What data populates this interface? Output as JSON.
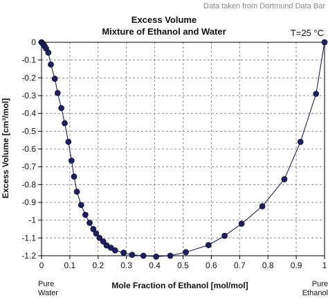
{
  "source_note": "Data taken from Dortmund Data Bar",
  "temperature_label": "T=25 °C",
  "pure_labels": {
    "left_line1": "Pure",
    "left_line2": "Water",
    "right_line1": "Pure",
    "right_line2": "Ethanol"
  },
  "chart_data": {
    "type": "scatter",
    "title": "Excess Volume",
    "subtitle": "Mixture of Ethanol and Water",
    "xlabel": "Mole Fraction of Ethanol [mol/mol]",
    "ylabel": "Excess Volume [cm³/mol]",
    "xlim": [
      0,
      1
    ],
    "ylim": [
      -1.2,
      0
    ],
    "grid": true,
    "xticks": [
      "0",
      "0.1",
      "0.2",
      "0.3",
      "0.4",
      "0.5",
      "0.6",
      "0.7",
      "0.8",
      "0.9",
      "1"
    ],
    "yticks": [
      "0",
      "-0.1",
      "-0.2",
      "-0.3",
      "-0.4",
      "-0.5",
      "-0.6",
      "-0.7",
      "-0.8",
      "-0.9",
      "-1",
      "-1.1",
      "-1.2"
    ],
    "series": [
      {
        "points": [
          [
            0.0,
            0.0
          ],
          [
            0.003,
            -0.005
          ],
          [
            0.007,
            -0.012
          ],
          [
            0.011,
            -0.022
          ],
          [
            0.016,
            -0.035
          ],
          [
            0.024,
            -0.058
          ],
          [
            0.033,
            -0.125
          ],
          [
            0.047,
            -0.205
          ],
          [
            0.057,
            -0.285
          ],
          [
            0.07,
            -0.37
          ],
          [
            0.082,
            -0.455
          ],
          [
            0.095,
            -0.56
          ],
          [
            0.106,
            -0.665
          ],
          [
            0.115,
            -0.755
          ],
          [
            0.125,
            -0.84
          ],
          [
            0.14,
            -0.915
          ],
          [
            0.155,
            -0.97
          ],
          [
            0.17,
            -1.015
          ],
          [
            0.183,
            -1.05
          ],
          [
            0.193,
            -1.075
          ],
          [
            0.205,
            -1.1
          ],
          [
            0.218,
            -1.12
          ],
          [
            0.23,
            -1.142
          ],
          [
            0.245,
            -1.155
          ],
          [
            0.26,
            -1.17
          ],
          [
            0.29,
            -1.183
          ],
          [
            0.32,
            -1.195
          ],
          [
            0.36,
            -1.2
          ],
          [
            0.405,
            -1.205
          ],
          [
            0.455,
            -1.2
          ],
          [
            0.51,
            -1.18
          ],
          [
            0.59,
            -1.14
          ],
          [
            0.647,
            -1.088
          ],
          [
            0.707,
            -1.02
          ],
          [
            0.78,
            -0.922
          ],
          [
            0.858,
            -0.77
          ],
          [
            0.915,
            -0.56
          ],
          [
            0.97,
            -0.29
          ],
          [
            1.0,
            0.0
          ]
        ]
      }
    ],
    "marker_color": "#1d1f5e",
    "line_color": "#1d1f5e"
  }
}
